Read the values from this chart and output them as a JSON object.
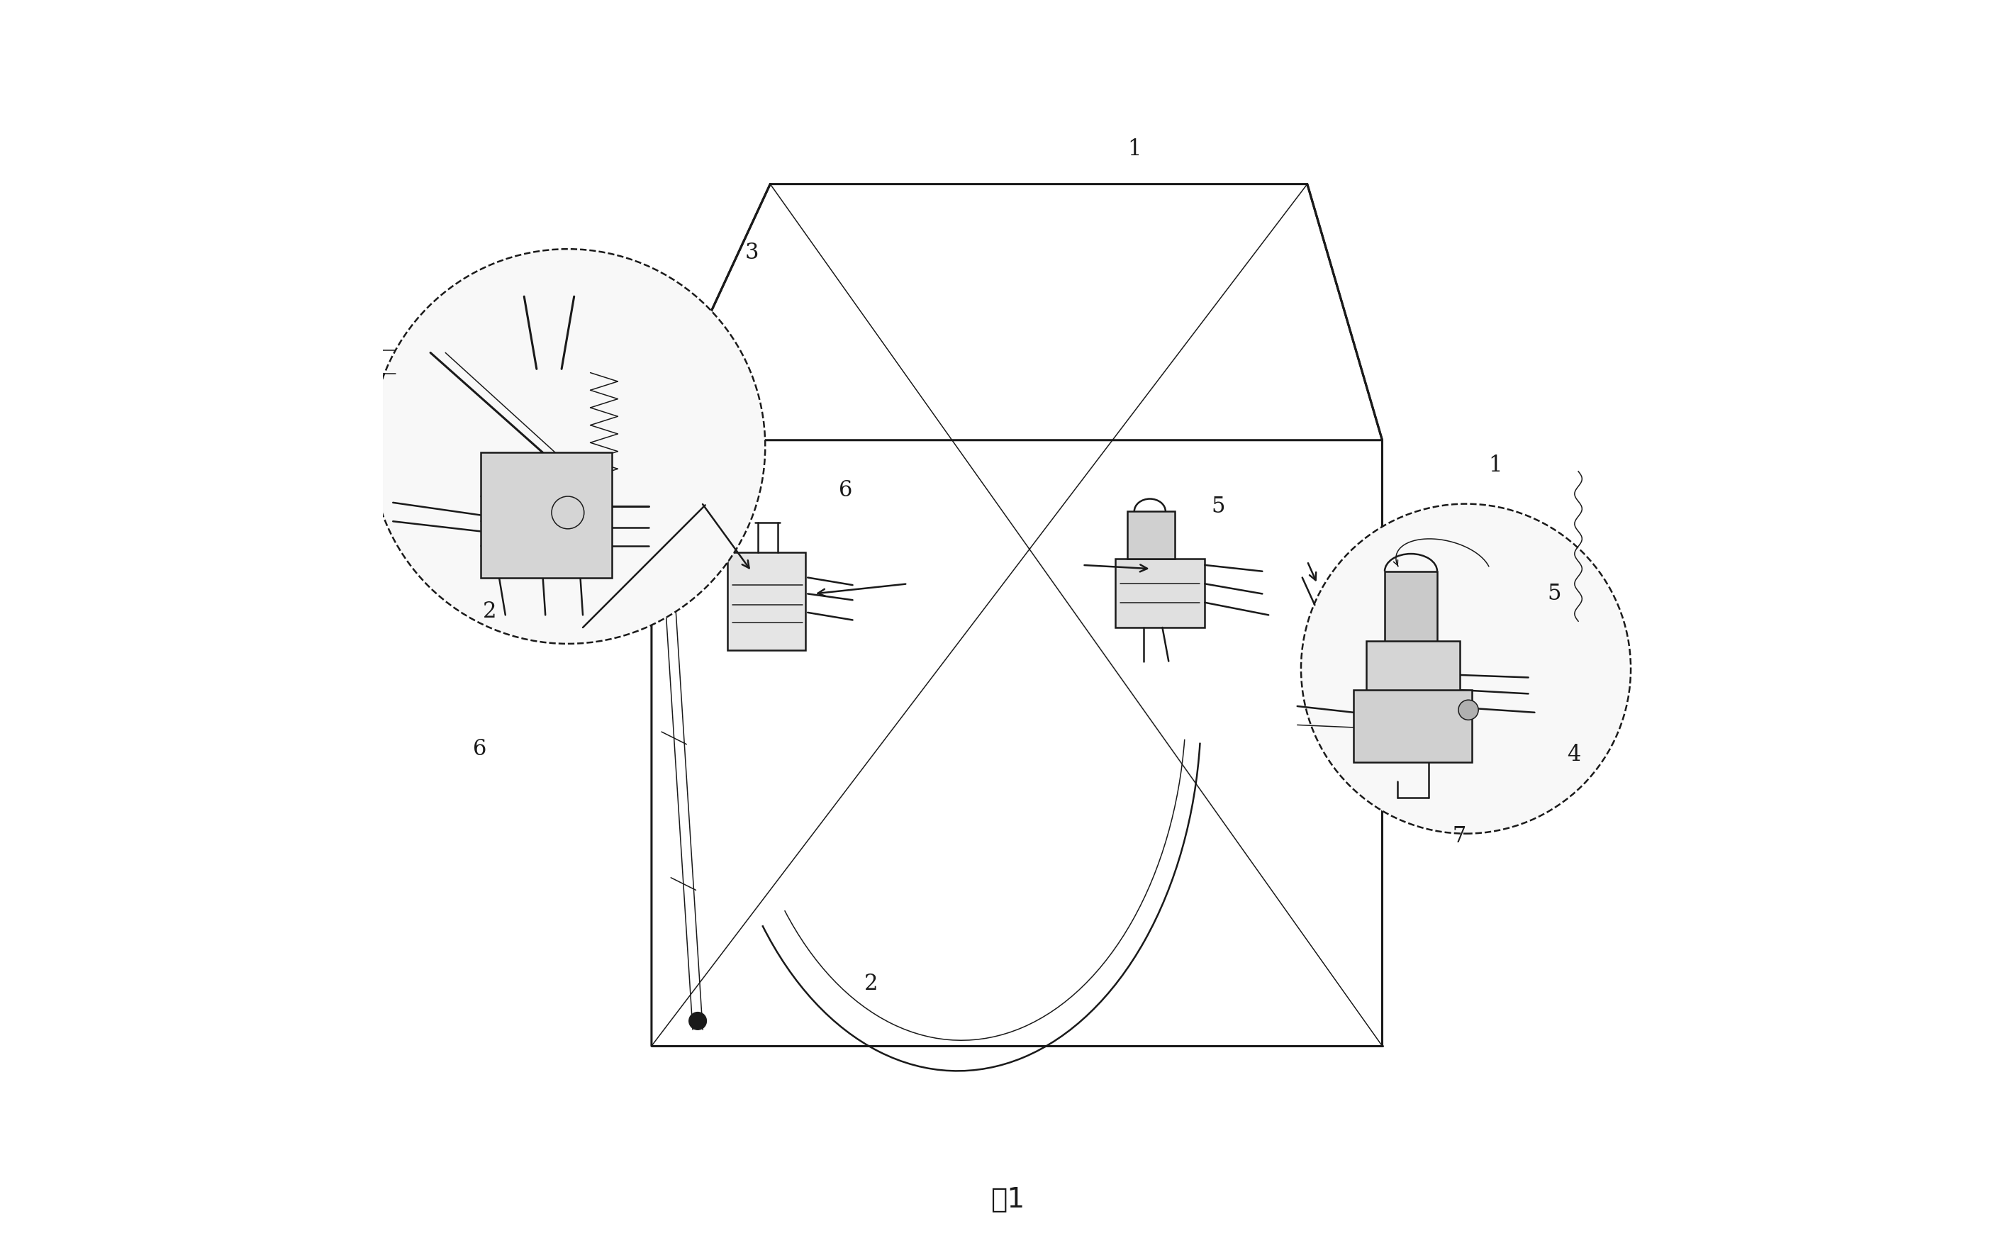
{
  "title": "",
  "caption": "图1",
  "background_color": "#ffffff",
  "line_color": "#1a1a1a",
  "fig_width": 28.42,
  "fig_height": 17.7,
  "label_fontsize": 22,
  "caption_fontsize": 28
}
